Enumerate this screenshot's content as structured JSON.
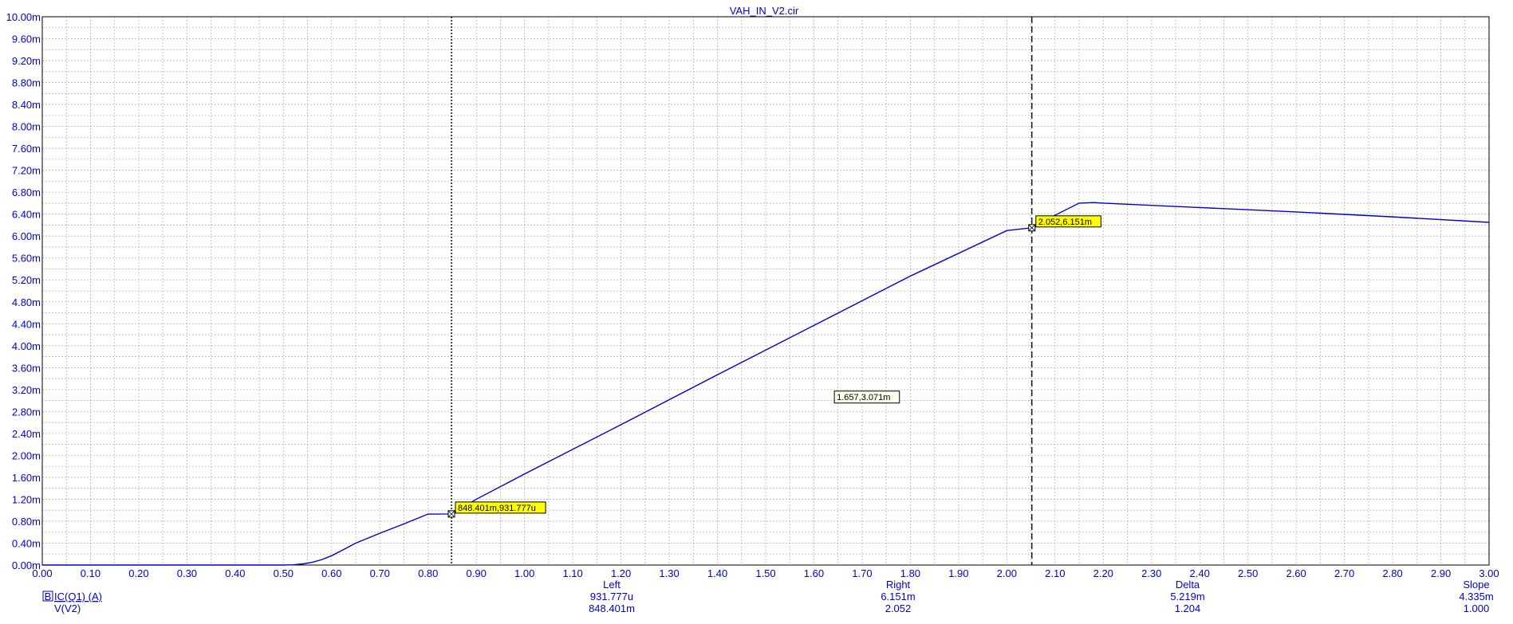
{
  "window": {
    "title": "VAH_IN_V2.cir"
  },
  "chart_data": {
    "type": "line",
    "title": "VAH_IN_V2.cir",
    "xlim": [
      0,
      3.0
    ],
    "ylim": [
      0,
      0.01
    ],
    "grid": true,
    "x_ticks": [
      "0.00",
      "0.10",
      "0.20",
      "0.30",
      "0.40",
      "0.50",
      "0.60",
      "0.70",
      "0.80",
      "0.90",
      "1.00",
      "1.10",
      "1.20",
      "1.30",
      "1.40",
      "1.50",
      "1.60",
      "1.70",
      "1.80",
      "1.90",
      "2.00",
      "2.10",
      "2.20",
      "2.30",
      "2.40",
      "2.50",
      "2.60",
      "2.70",
      "2.80",
      "2.90",
      "3.00"
    ],
    "y_ticks": [
      "0.00m",
      "0.40m",
      "0.80m",
      "1.20m",
      "1.60m",
      "2.00m",
      "2.40m",
      "2.80m",
      "3.20m",
      "3.60m",
      "4.00m",
      "4.40m",
      "4.80m",
      "5.20m",
      "5.60m",
      "6.00m",
      "6.40m",
      "6.80m",
      "7.20m",
      "7.60m",
      "8.00m",
      "8.40m",
      "8.80m",
      "9.20m",
      "9.60m",
      "10.00m"
    ],
    "series": [
      {
        "name": "IC(Q1) (A)",
        "color": "#0000cc",
        "x": [
          0,
          0.5,
          0.52,
          0.54,
          0.56,
          0.58,
          0.6,
          0.62,
          0.65,
          0.7,
          0.75,
          0.8,
          0.848401,
          0.9,
          1.0,
          1.2,
          1.4,
          1.6,
          1.8,
          2.0,
          2.052,
          2.1,
          2.15,
          2.18,
          2.2,
          2.4,
          2.6,
          2.8,
          3.0
        ],
        "y": [
          0,
          0,
          5e-06,
          2e-05,
          5e-05,
          0.0001,
          0.00017,
          0.00026,
          0.0004,
          0.00058,
          0.00075,
          0.00093,
          0.000931777,
          0.0012,
          0.00166,
          0.00256,
          0.00347,
          0.00437,
          0.00527,
          0.0061,
          0.006151,
          0.00638,
          0.0066,
          0.00661,
          0.0066,
          0.00652,
          0.00644,
          0.00635,
          0.00625
        ]
      }
    ],
    "cursors": [
      {
        "id": "left",
        "x": 0.848401,
        "y": 0.000931777,
        "style": "dotted",
        "label": "848.401m,931.777u"
      },
      {
        "id": "right",
        "x": 2.052,
        "y": 0.006151,
        "style": "dashed",
        "label": "2.052,6.151m"
      }
    ],
    "annotation": {
      "x": 1.657,
      "y": 0.003071,
      "label": "1.657,3.071m"
    }
  },
  "readout": {
    "headers": {
      "left": "Left",
      "right": "Right",
      "delta": "Delta",
      "slope": "Slope"
    },
    "rows": [
      {
        "marker": "B",
        "name": "IC(Q1) (A)",
        "left": "931.777u",
        "right": "6.151m",
        "delta": "5.219m",
        "slope": "4.335m"
      },
      {
        "name": "V(V2)",
        "left": "848.401m",
        "right": "2.052",
        "delta": "1.204",
        "slope": "1.000"
      }
    ]
  }
}
